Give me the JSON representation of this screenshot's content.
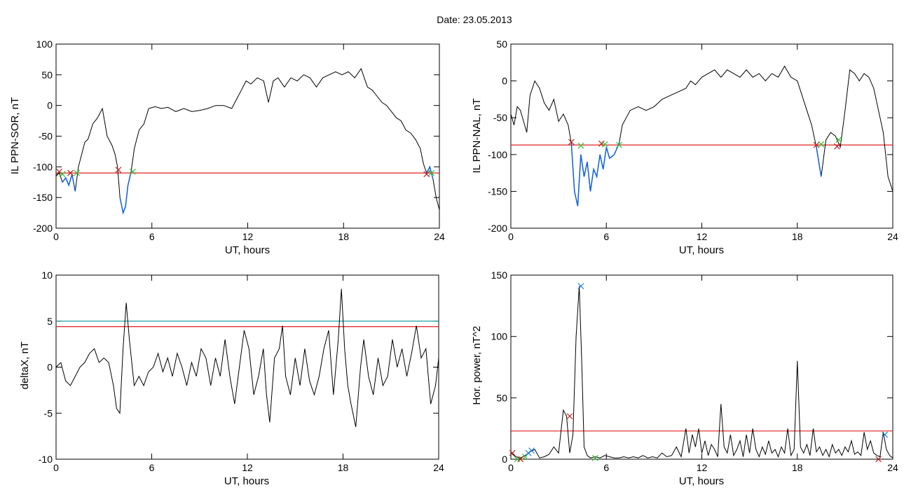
{
  "figure_title": "Date:  23.05.2013",
  "colors": {
    "trace": "#000000",
    "threshold": "#e02020",
    "threshold2": "#20a0a0",
    "highlight": "#1060e0",
    "marker_red": "#c02020",
    "marker_green": "#30c030",
    "marker_blue": "#2080e0"
  },
  "chart_data": [
    {
      "id": "sor",
      "type": "line",
      "ylabel": "IL PPN-SOR, nT",
      "xlabel": "UT, hours",
      "xlim": [
        0,
        24
      ],
      "ylim": [
        -200,
        100
      ],
      "x_ticks": [
        "0",
        "6",
        "12",
        "18",
        "24"
      ],
      "y_ticks": [
        "100",
        "50",
        "0",
        "-50",
        "-100",
        "-150",
        "-200"
      ],
      "y_tick_values": [
        100,
        50,
        0,
        -50,
        -100,
        -150,
        -200
      ],
      "series": [
        {
          "x": [
            0,
            0.2,
            0.4,
            0.6,
            0.8,
            1.0,
            1.2,
            1.4,
            1.6,
            1.8,
            2.0,
            2.3,
            2.6,
            2.9,
            3.2,
            3.5,
            3.7,
            3.85,
            4.0,
            4.2,
            4.35,
            4.5,
            4.7,
            4.9,
            5.2,
            5.5,
            5.8,
            6.2,
            6.6,
            7.0,
            7.5,
            8.0,
            8.5,
            9.0,
            9.5,
            10.0,
            10.5,
            11.0,
            11.3,
            11.6,
            11.9,
            12.2,
            12.6,
            13.0,
            13.3,
            13.6,
            13.9,
            14.3,
            14.7,
            15.1,
            15.5,
            15.9,
            16.3,
            16.7,
            17.1,
            17.5,
            17.9,
            18.3,
            18.7,
            19.1,
            19.5,
            19.8,
            20.1,
            20.4,
            20.7,
            21.0,
            21.3,
            21.6,
            21.9,
            22.2,
            22.5,
            22.8,
            23.0,
            23.2,
            23.4,
            23.6,
            23.8,
            24.0
          ],
          "y": [
            -115,
            -110,
            -125,
            -118,
            -130,
            -112,
            -140,
            -100,
            -80,
            -60,
            -55,
            -30,
            -20,
            -5,
            -50,
            -65,
            -80,
            -100,
            -150,
            -175,
            -165,
            -130,
            -108,
            -70,
            -40,
            -30,
            -5,
            -2,
            -5,
            -3,
            -10,
            -5,
            -10,
            -8,
            -5,
            0,
            0,
            -5,
            10,
            25,
            40,
            35,
            45,
            40,
            5,
            40,
            45,
            30,
            45,
            40,
            50,
            45,
            30,
            45,
            50,
            55,
            50,
            55,
            45,
            60,
            30,
            25,
            15,
            5,
            0,
            -10,
            -20,
            -25,
            -40,
            -45,
            -55,
            -70,
            -95,
            -110,
            -100,
            -120,
            -150,
            -170
          ]
        }
      ],
      "threshold": -110,
      "highlight_ranges": [
        [
          0.3,
          1.3
        ],
        [
          3.9,
          4.8
        ],
        [
          23.1,
          23.6
        ]
      ],
      "markers": [
        {
          "x": 0.2,
          "y": -108,
          "c": "red"
        },
        {
          "x": 0.4,
          "y": -112,
          "c": "green"
        },
        {
          "x": 0.9,
          "y": -110,
          "c": "red"
        },
        {
          "x": 1.3,
          "y": -110,
          "c": "green"
        },
        {
          "x": 3.9,
          "y": -105,
          "c": "red"
        },
        {
          "x": 4.8,
          "y": -108,
          "c": "green"
        },
        {
          "x": 23.2,
          "y": -112,
          "c": "red"
        },
        {
          "x": 23.5,
          "y": -110,
          "c": "green"
        }
      ]
    },
    {
      "id": "nal",
      "type": "line",
      "ylabel": "IL PPN-NAL, nT",
      "xlabel": "UT, hours",
      "xlim": [
        0,
        24
      ],
      "ylim": [
        -200,
        50
      ],
      "x_ticks": [
        "0",
        "6",
        "12",
        "18",
        "24"
      ],
      "y_ticks": [
        "50",
        "0",
        "-50",
        "-100",
        "-150",
        "-200"
      ],
      "y_tick_values": [
        50,
        0,
        -50,
        -100,
        -150,
        -200
      ],
      "series": [
        {
          "x": [
            0,
            0.2,
            0.4,
            0.6,
            0.8,
            1.0,
            1.2,
            1.5,
            1.8,
            2.1,
            2.4,
            2.7,
            3.0,
            3.3,
            3.6,
            3.8,
            4.0,
            4.2,
            4.4,
            4.6,
            4.8,
            5.0,
            5.2,
            5.4,
            5.6,
            5.8,
            6.0,
            6.2,
            6.5,
            6.8,
            7.0,
            7.5,
            8.0,
            8.5,
            9.0,
            9.5,
            10.0,
            10.5,
            11.0,
            11.3,
            11.6,
            12.0,
            12.4,
            12.8,
            13.2,
            13.6,
            14.0,
            14.4,
            14.8,
            15.2,
            15.6,
            16.0,
            16.4,
            16.8,
            17.2,
            17.6,
            18.0,
            18.3,
            18.6,
            18.9,
            19.2,
            19.5,
            19.8,
            20.1,
            20.4,
            20.7,
            21.0,
            21.3,
            21.6,
            21.9,
            22.2,
            22.5,
            22.8,
            23.1,
            23.4,
            23.7,
            24.0
          ],
          "y": [
            -45,
            -60,
            -35,
            -40,
            -55,
            -70,
            -20,
            0,
            -10,
            -30,
            -40,
            -25,
            -55,
            -45,
            -60,
            -85,
            -150,
            -170,
            -100,
            -130,
            -110,
            -150,
            -120,
            -130,
            -100,
            -120,
            -90,
            -105,
            -100,
            -85,
            -60,
            -40,
            -35,
            -40,
            -35,
            -25,
            -20,
            -15,
            -10,
            0,
            -5,
            5,
            10,
            15,
            5,
            15,
            10,
            5,
            15,
            5,
            10,
            0,
            10,
            5,
            20,
            5,
            0,
            -20,
            -40,
            -60,
            -90,
            -130,
            -80,
            -70,
            -75,
            -90,
            -40,
            15,
            10,
            0,
            10,
            5,
            -10,
            -40,
            -70,
            -130,
            -150
          ]
        }
      ],
      "threshold": -87,
      "highlight_ranges": [
        [
          3.8,
          6.8
        ],
        [
          19.1,
          19.6
        ]
      ],
      "markers": [
        {
          "x": 3.8,
          "y": -83,
          "c": "red"
        },
        {
          "x": 4.4,
          "y": -88,
          "c": "green"
        },
        {
          "x": 5.7,
          "y": -85,
          "c": "red"
        },
        {
          "x": 5.9,
          "y": -86,
          "c": "green"
        },
        {
          "x": 6.8,
          "y": -87,
          "c": "green"
        },
        {
          "x": 19.2,
          "y": -87,
          "c": "red"
        },
        {
          "x": 19.5,
          "y": -86,
          "c": "green"
        },
        {
          "x": 20.5,
          "y": -89,
          "c": "red"
        },
        {
          "x": 20.6,
          "y": -80,
          "c": "green"
        }
      ]
    },
    {
      "id": "deltax",
      "type": "line",
      "ylabel": "deltaX, nT",
      "xlabel": "UT, hours",
      "xlim": [
        0,
        24
      ],
      "ylim": [
        -10,
        10
      ],
      "x_ticks": [
        "0",
        "6",
        "12",
        "18",
        "24"
      ],
      "y_ticks": [
        "10",
        "5",
        "0",
        "-5",
        "-10"
      ],
      "y_tick_values": [
        10,
        5,
        0,
        -5,
        -10
      ],
      "series": [
        {
          "x": [
            0,
            0.3,
            0.6,
            0.9,
            1.2,
            1.5,
            1.8,
            2.1,
            2.4,
            2.7,
            3.0,
            3.3,
            3.6,
            3.8,
            4.0,
            4.2,
            4.4,
            4.6,
            4.9,
            5.2,
            5.5,
            5.8,
            6.1,
            6.4,
            6.7,
            7.0,
            7.3,
            7.6,
            7.9,
            8.2,
            8.5,
            8.8,
            9.1,
            9.4,
            9.7,
            10.0,
            10.3,
            10.6,
            10.9,
            11.2,
            11.5,
            11.8,
            12.1,
            12.4,
            12.7,
            13.0,
            13.2,
            13.4,
            13.7,
            14.0,
            14.2,
            14.4,
            14.7,
            15.0,
            15.3,
            15.6,
            15.9,
            16.2,
            16.5,
            16.8,
            17.1,
            17.4,
            17.7,
            17.9,
            18.1,
            18.3,
            18.5,
            18.8,
            19.1,
            19.3,
            19.6,
            19.9,
            20.2,
            20.5,
            20.8,
            21.1,
            21.4,
            21.7,
            22.0,
            22.3,
            22.6,
            22.9,
            23.2,
            23.5,
            23.8,
            24.0
          ],
          "y": [
            0,
            0.5,
            -1.5,
            -2,
            -1,
            0,
            0.5,
            1.5,
            2,
            0.5,
            1,
            0.5,
            -2,
            -4.5,
            -5,
            2,
            7,
            3,
            -2,
            -1,
            -2,
            -0.5,
            0,
            1.5,
            -0.5,
            1,
            -1,
            1.5,
            0,
            -2,
            0.5,
            -1,
            2,
            1,
            -2,
            1,
            -1,
            3,
            -1,
            -4,
            0,
            4,
            2,
            -3,
            -1,
            2,
            -3,
            -6,
            1,
            2,
            4.5,
            -1,
            -3,
            1,
            -2,
            2,
            -1.5,
            -3,
            -1,
            2,
            4,
            -3,
            3,
            8.5,
            2,
            -2,
            -4,
            -6.5,
            0,
            3,
            -1,
            -3,
            1,
            -2,
            -1,
            3,
            0,
            2,
            -1,
            1.5,
            4.5,
            1,
            2,
            -4,
            -2,
            1
          ]
        }
      ],
      "threshold": 4.4,
      "threshold2": 5
    },
    {
      "id": "power",
      "type": "line",
      "ylabel": "Hor. power, nT^2",
      "xlabel": "UT, hours",
      "xlim": [
        0,
        24
      ],
      "ylim": [
        0,
        150
      ],
      "x_ticks": [
        "0",
        "6",
        "12",
        "18",
        "24"
      ],
      "y_ticks": [
        "150",
        "100",
        "50",
        "0"
      ],
      "y_tick_values": [
        150,
        100,
        50,
        0
      ],
      "series": [
        {
          "x": [
            0,
            0.3,
            0.6,
            0.9,
            1.2,
            1.5,
            1.8,
            2.1,
            2.4,
            2.7,
            3.0,
            3.3,
            3.5,
            3.7,
            3.9,
            4.1,
            4.3,
            4.45,
            4.6,
            4.8,
            5.0,
            5.3,
            5.6,
            5.9,
            6.2,
            6.5,
            6.8,
            7.1,
            7.4,
            7.7,
            8.0,
            8.3,
            8.6,
            8.9,
            9.2,
            9.5,
            9.8,
            10.1,
            10.4,
            10.7,
            11.0,
            11.2,
            11.4,
            11.6,
            11.8,
            12.0,
            12.2,
            12.4,
            12.6,
            12.8,
            13.0,
            13.2,
            13.4,
            13.6,
            13.8,
            14.0,
            14.2,
            14.4,
            14.6,
            14.8,
            15.0,
            15.2,
            15.4,
            15.6,
            15.8,
            16.0,
            16.2,
            16.4,
            16.6,
            16.8,
            17.0,
            17.2,
            17.4,
            17.6,
            17.8,
            18.0,
            18.2,
            18.4,
            18.6,
            18.8,
            19.0,
            19.2,
            19.4,
            19.6,
            19.8,
            20.0,
            20.2,
            20.4,
            20.6,
            20.8,
            21.0,
            21.2,
            21.4,
            21.6,
            21.8,
            22.0,
            22.2,
            22.4,
            22.6,
            22.8,
            23.0,
            23.2,
            23.4,
            23.6,
            23.8,
            24.0
          ],
          "y": [
            5,
            2,
            1,
            3,
            6,
            8,
            1,
            2,
            4,
            10,
            5,
            40,
            35,
            5,
            20,
            100,
            141,
            80,
            10,
            3,
            1,
            2,
            1,
            3,
            2,
            1,
            1,
            2,
            1,
            2,
            1,
            3,
            1,
            2,
            1,
            5,
            2,
            3,
            10,
            2,
            25,
            5,
            20,
            10,
            25,
            5,
            15,
            3,
            12,
            8,
            2,
            45,
            10,
            5,
            20,
            3,
            8,
            15,
            2,
            20,
            5,
            25,
            8,
            2,
            10,
            4,
            15,
            5,
            8,
            2,
            10,
            5,
            25,
            3,
            8,
            80,
            10,
            5,
            12,
            3,
            25,
            6,
            10,
            3,
            8,
            2,
            12,
            5,
            8,
            3,
            10,
            6,
            15,
            4,
            6,
            3,
            22,
            8,
            15,
            5,
            3,
            2,
            22,
            8,
            3,
            1
          ]
        }
      ],
      "threshold": 23,
      "markers": [
        {
          "x": 0.1,
          "y": 5,
          "c": "red"
        },
        {
          "x": 0.4,
          "y": 0,
          "c": "green"
        },
        {
          "x": 0.6,
          "y": 0,
          "c": "red"
        },
        {
          "x": 0.9,
          "y": 2,
          "c": "green"
        },
        {
          "x": 1.1,
          "y": 5,
          "c": "blue"
        },
        {
          "x": 1.3,
          "y": 7,
          "c": "blue"
        },
        {
          "x": 3.7,
          "y": 35,
          "c": "red"
        },
        {
          "x": 4.4,
          "y": 141,
          "c": "blue"
        },
        {
          "x": 5.3,
          "y": 1,
          "c": "green"
        },
        {
          "x": 23.1,
          "y": 0,
          "c": "red"
        },
        {
          "x": 23.5,
          "y": 20,
          "c": "blue"
        }
      ]
    }
  ]
}
